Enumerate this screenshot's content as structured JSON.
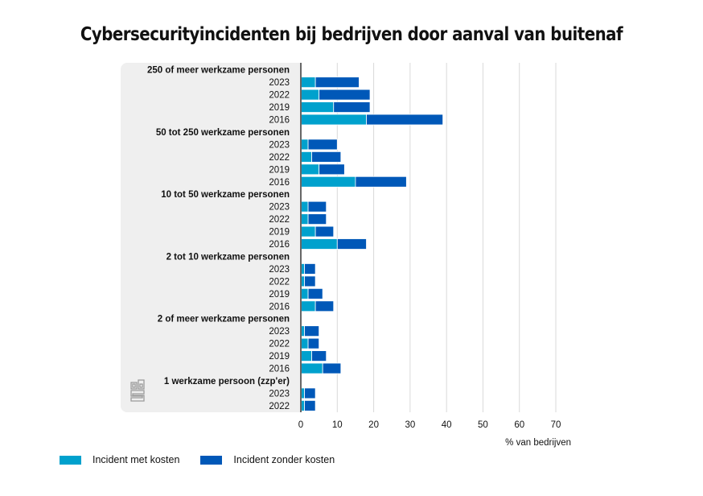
{
  "chart_data": {
    "type": "bar",
    "orientation": "horizontal",
    "stacked": true,
    "title": "Cybersecurityincidenten bij bedrijven door aanval van buitenaf",
    "xlabel": "% van bedrijven",
    "ylabel": "",
    "xlim": [
      0,
      70
    ],
    "xticks": [
      "0",
      "10",
      "20",
      "30",
      "40",
      "50",
      "60",
      "70"
    ],
    "grid": true,
    "legend_position": "bottom-left",
    "colors": {
      "met_kosten": "#00a1cd",
      "zonder_kosten": "#0058b8",
      "panel": "#efefef",
      "grid": "#d9d9d9",
      "axis": "#666666"
    },
    "series_names": [
      "Incident met kosten",
      "Incident zonder kosten"
    ],
    "groups": [
      {
        "label": "250 of meer werkzame personen",
        "rows": [
          {
            "year": "2023",
            "met_kosten": 4,
            "zonder_kosten": 12
          },
          {
            "year": "2022",
            "met_kosten": 5,
            "zonder_kosten": 14
          },
          {
            "year": "2019",
            "met_kosten": 9,
            "zonder_kosten": 10
          },
          {
            "year": "2016",
            "met_kosten": 18,
            "zonder_kosten": 21
          }
        ]
      },
      {
        "label": "50 tot 250 werkzame personen",
        "rows": [
          {
            "year": "2023",
            "met_kosten": 2,
            "zonder_kosten": 8
          },
          {
            "year": "2022",
            "met_kosten": 3,
            "zonder_kosten": 8
          },
          {
            "year": "2019",
            "met_kosten": 5,
            "zonder_kosten": 7
          },
          {
            "year": "2016",
            "met_kosten": 15,
            "zonder_kosten": 14
          }
        ]
      },
      {
        "label": "10 tot 50 werkzame personen",
        "rows": [
          {
            "year": "2023",
            "met_kosten": 2,
            "zonder_kosten": 5
          },
          {
            "year": "2022",
            "met_kosten": 2,
            "zonder_kosten": 5
          },
          {
            "year": "2019",
            "met_kosten": 4,
            "zonder_kosten": 5
          },
          {
            "year": "2016",
            "met_kosten": 10,
            "zonder_kosten": 8
          }
        ]
      },
      {
        "label": "2 tot 10 werkzame personen",
        "rows": [
          {
            "year": "2023",
            "met_kosten": 1,
            "zonder_kosten": 3
          },
          {
            "year": "2022",
            "met_kosten": 1,
            "zonder_kosten": 3
          },
          {
            "year": "2019",
            "met_kosten": 2,
            "zonder_kosten": 4
          },
          {
            "year": "2016",
            "met_kosten": 4,
            "zonder_kosten": 5
          }
        ]
      },
      {
        "label": "2 of meer werkzame personen",
        "rows": [
          {
            "year": "2023",
            "met_kosten": 1,
            "zonder_kosten": 4
          },
          {
            "year": "2022",
            "met_kosten": 2,
            "zonder_kosten": 3
          },
          {
            "year": "2019",
            "met_kosten": 3,
            "zonder_kosten": 4
          },
          {
            "year": "2016",
            "met_kosten": 6,
            "zonder_kosten": 5
          }
        ]
      },
      {
        "label": "1 werkzame persoon (zzp'er)",
        "rows": [
          {
            "year": "2023",
            "met_kosten": 1,
            "zonder_kosten": 3
          },
          {
            "year": "2022",
            "met_kosten": 1,
            "zonder_kosten": 3
          }
        ]
      }
    ]
  },
  "legend": [
    {
      "label": "Incident met kosten",
      "color": "#00a1cd"
    },
    {
      "label": "Incident zonder kosten",
      "color": "#0058b8"
    }
  ],
  "logo": {
    "text": "cbs",
    "icon": "cbs-logo-icon"
  }
}
